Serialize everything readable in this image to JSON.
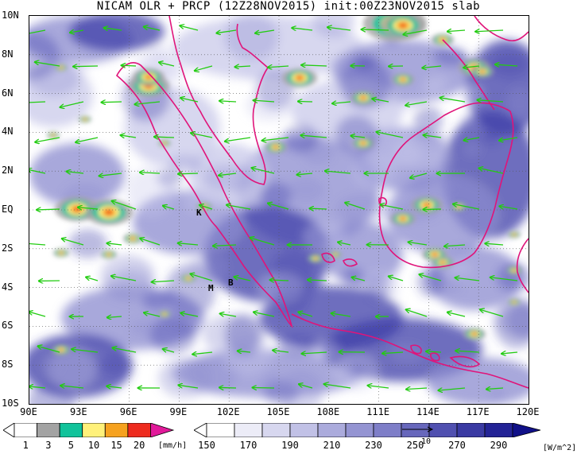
{
  "title": "NICAM OLR + PRCP (12Z28NOV2015) init:00Z23NOV2015 slab",
  "map": {
    "lon_labels": [
      "90E",
      "93E",
      "96E",
      "99E",
      "102E",
      "105E",
      "108E",
      "111E",
      "114E",
      "117E",
      "120E"
    ],
    "lat_labels": [
      "10N",
      "8N",
      "6N",
      "4N",
      "2N",
      "EQ",
      "2S",
      "4S",
      "6S",
      "8S",
      "10S"
    ],
    "lon_range": [
      90,
      120
    ],
    "lat_range": [
      -10,
      10
    ],
    "grid": true,
    "place_markers": [
      "K",
      "M",
      "B"
    ]
  },
  "precip_colorbar": {
    "labels": [
      "1",
      "3",
      "5",
      "10",
      "15",
      "20"
    ],
    "unit": "[mm/h]",
    "colors": [
      "#ffffff",
      "#a3a3a3",
      "#11c39b",
      "#fff17a",
      "#f6a21f",
      "#ee2b1e",
      "#e11a9a"
    ]
  },
  "olr_colorbar": {
    "labels": [
      "150",
      "170",
      "190",
      "210",
      "230",
      "250",
      "270",
      "290"
    ],
    "unit": "[W/m^2]",
    "vector_ref": "10",
    "colors": [
      "#ffffff",
      "#ececf7",
      "#d7d7ef",
      "#c1c1e6",
      "#ababdc",
      "#9494d2",
      "#7e7ec8",
      "#6767bc",
      "#5050b0",
      "#3a3aa3",
      "#232396",
      "#101088"
    ]
  },
  "colors": {
    "coastline": "#e0147a",
    "wind_vector": "#22cc11",
    "cloud_light": "#c9c9ea",
    "cloud_mid": "#8b8bcf",
    "cloud_deep": "#3d3da8"
  }
}
